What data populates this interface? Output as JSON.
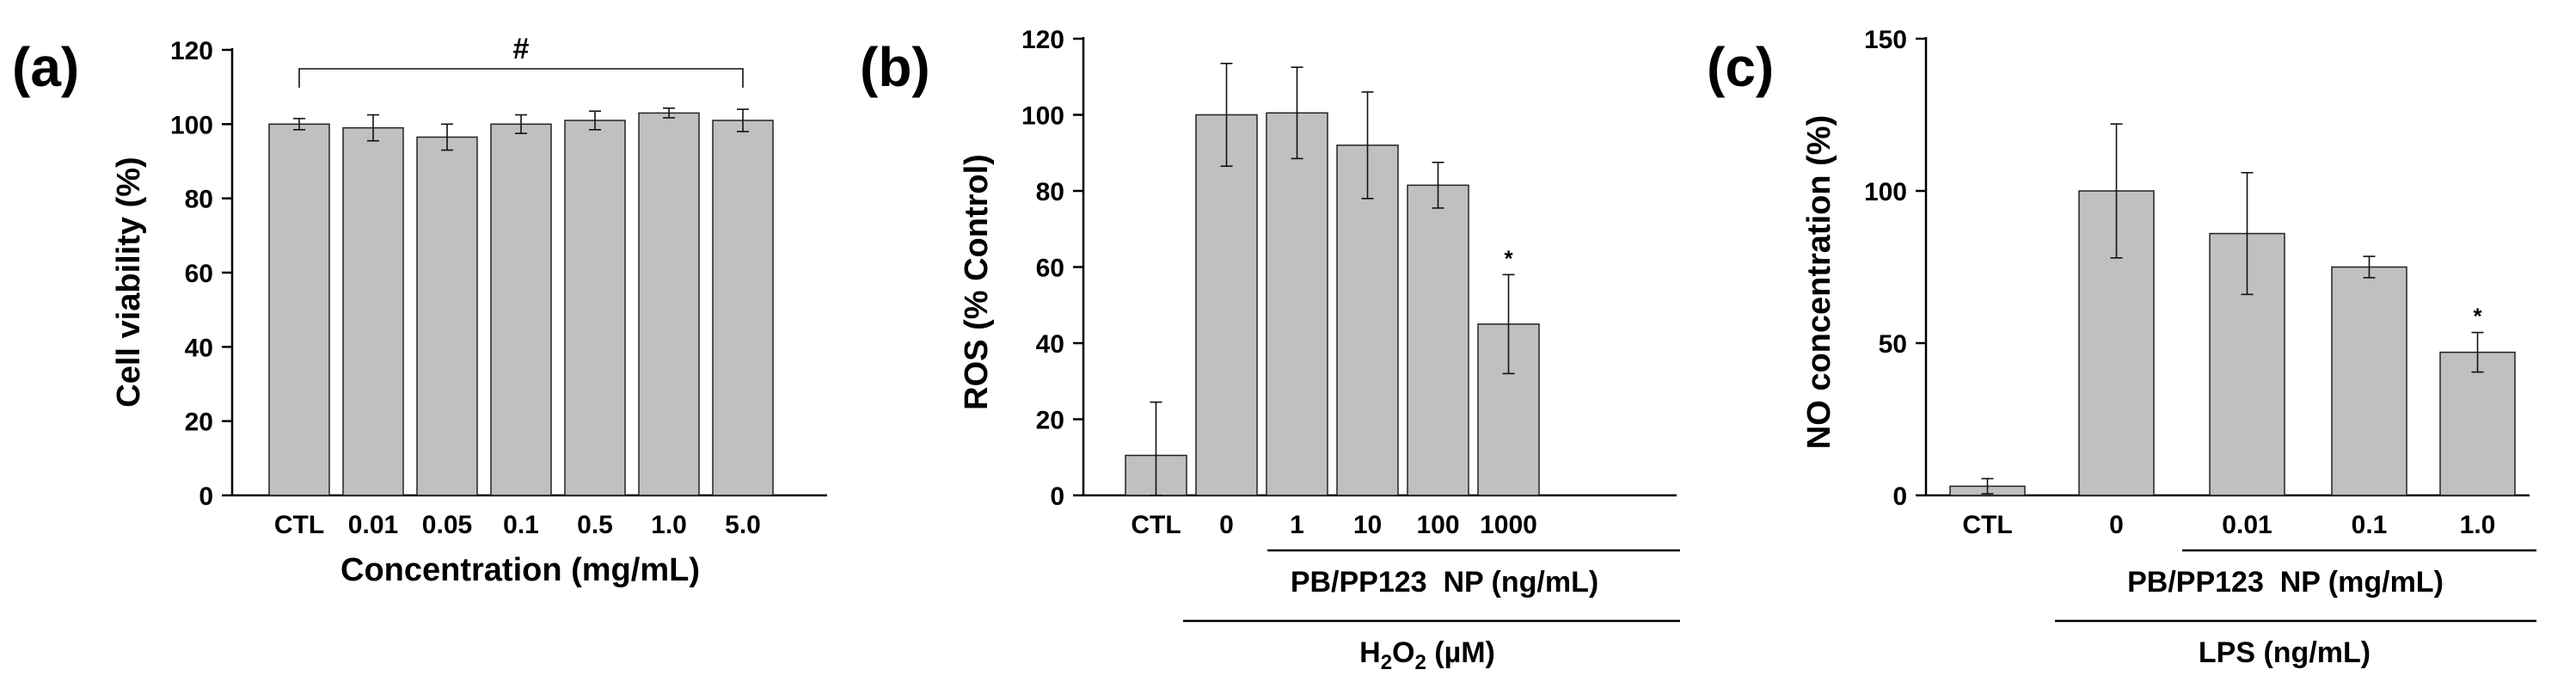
{
  "chart_data": [
    {
      "panel": "(a)",
      "type": "bar",
      "ylabel": "Cell viability (%)",
      "xlabel": "Concentration (mg/mL)",
      "ylim": [
        0,
        120
      ],
      "yticks": [
        0,
        20,
        40,
        60,
        80,
        100,
        120
      ],
      "categories": [
        "CTL",
        "0.01",
        "0.05",
        "0.1",
        "0.5",
        "1.0",
        "5.0"
      ],
      "values": [
        100,
        99,
        96.5,
        100,
        101,
        103,
        101
      ],
      "errors": [
        1.5,
        3.5,
        3.5,
        2.5,
        2.5,
        1.3,
        3
      ],
      "bracket": {
        "label": "#",
        "from": "CTL",
        "to": "5.0"
      }
    },
    {
      "panel": "(b)",
      "type": "bar",
      "ylabel": "ROS (% Control)",
      "ylim": [
        0,
        120
      ],
      "yticks": [
        0,
        20,
        40,
        60,
        80,
        100,
        120
      ],
      "categories": [
        "CTL",
        "0",
        "1",
        "10",
        "100",
        "1000"
      ],
      "values": [
        10.5,
        100,
        100.5,
        92,
        81.5,
        45
      ],
      "errors": [
        14,
        13.5,
        12,
        14,
        6,
        13
      ],
      "significance": [
        {
          "category": "1000",
          "label": "*"
        }
      ],
      "groups": [
        {
          "label": "PB/PP123  NP (ng/mL)",
          "from": "1",
          "to": "1000"
        },
        {
          "label": "H2O2 (µM)",
          "from": "0",
          "to": "1000"
        }
      ]
    },
    {
      "panel": "(c)",
      "type": "bar",
      "ylabel": "NO concentration (%)",
      "ylim": [
        0,
        150
      ],
      "yticks": [
        0,
        50,
        100,
        150
      ],
      "categories": [
        "CTL",
        "0",
        "0.01",
        "0.1",
        "1.0"
      ],
      "values": [
        3,
        100,
        86,
        75,
        47
      ],
      "errors": [
        2.5,
        22,
        20,
        3.5,
        6.5
      ],
      "significance": [
        {
          "category": "1.0",
          "label": "*"
        }
      ],
      "groups": [
        {
          "label": "PB/PP123  NP (mg/mL)",
          "from": "0.01",
          "to": "1.0"
        },
        {
          "label": "LPS (ng/mL)",
          "from": "0",
          "to": "1.0"
        }
      ]
    }
  ],
  "colors": {
    "bar_fill": "#c0c0c0",
    "bar_stroke": "#222222",
    "axis": "#000000"
  }
}
